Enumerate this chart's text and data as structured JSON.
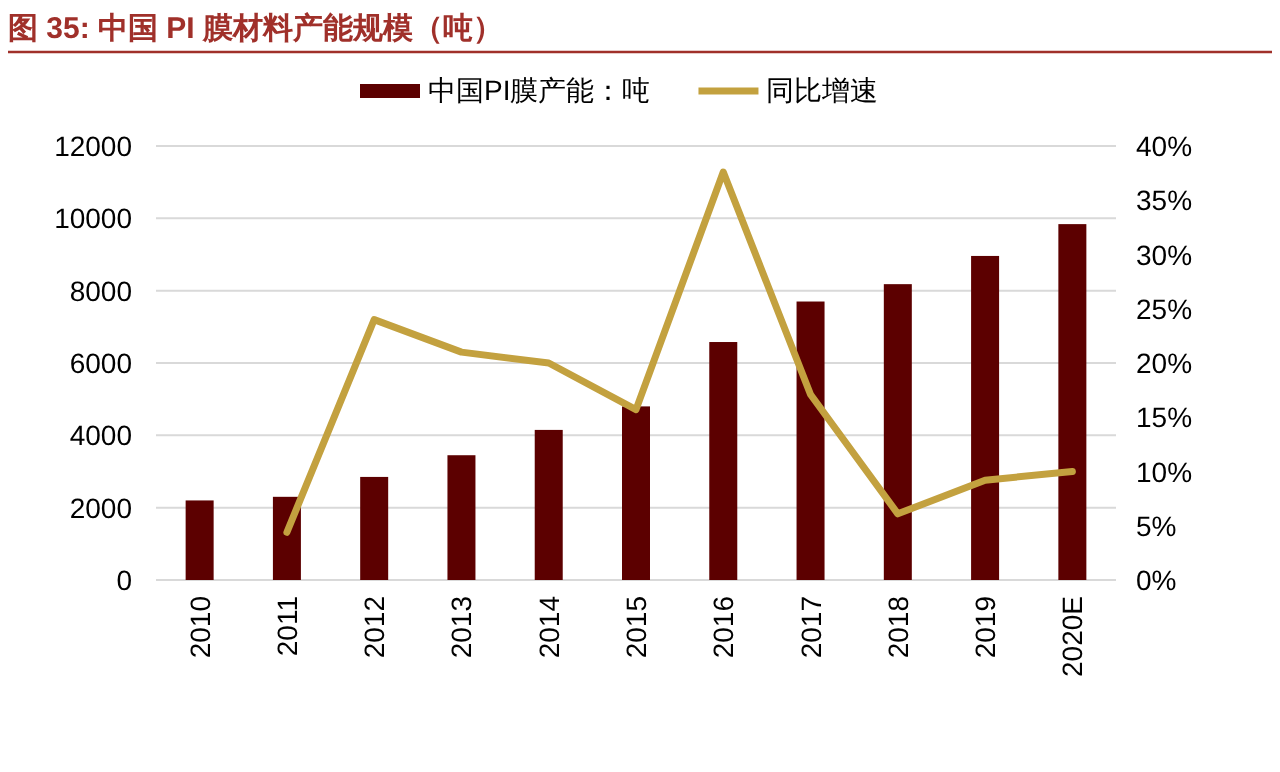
{
  "chart_data": {
    "type": "bar",
    "title": "图 35:  中国 PI 膜材料产能规模（吨）",
    "categories": [
      "2010",
      "2011",
      "2012",
      "2013",
      "2014",
      "2015",
      "2016",
      "2017",
      "2018",
      "2019",
      "2020E"
    ],
    "series": [
      {
        "name": "中国PI膜产能：吨",
        "color": "#5c0000",
        "values": [
          2200,
          2300,
          2850,
          3450,
          4150,
          4800,
          6580,
          7700,
          8180,
          8960,
          9840
        ]
      },
      {
        "name": "同比增速",
        "type": "line",
        "axis": "y2",
        "color": "#c3a13f",
        "values": [
          null,
          4.4,
          24,
          21,
          20,
          15.7,
          37.6,
          17.1,
          6.1,
          9.2,
          10
        ]
      }
    ],
    "ylim": [
      0,
      12000
    ],
    "yticks": [
      0,
      2000,
      4000,
      6000,
      8000,
      10000,
      12000
    ],
    "y2lim": [
      0,
      40
    ],
    "y2ticks": [
      {
        "value": 0,
        "label": "0%"
      },
      {
        "value": 5,
        "label": "5%"
      },
      {
        "value": 10,
        "label": "10%"
      },
      {
        "value": 15,
        "label": "15%"
      },
      {
        "value": 20,
        "label": "20%"
      },
      {
        "value": 25,
        "label": "25%"
      },
      {
        "value": 30,
        "label": "30%"
      },
      {
        "value": 35,
        "label": "35%"
      },
      {
        "value": 40,
        "label": "40%"
      }
    ],
    "grid": "y",
    "legend": "top",
    "marker": "none"
  }
}
